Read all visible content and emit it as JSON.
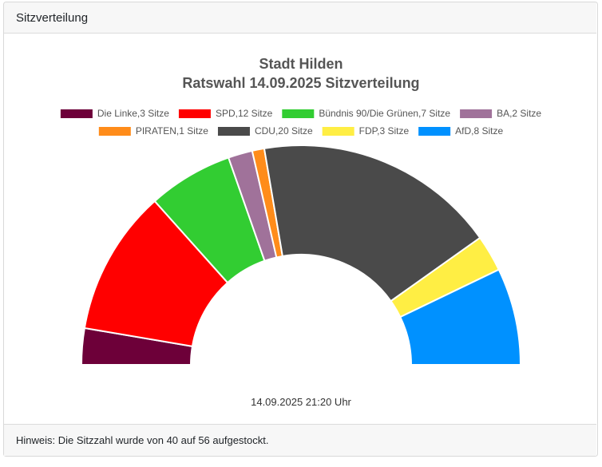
{
  "header": {
    "title": "Sitzverteilung"
  },
  "footer": {
    "note": "Hinweis: Die Sitzzahl wurde von 40 auf 56 aufgestockt."
  },
  "chart_data": {
    "type": "pie",
    "subtype": "half-doughnut",
    "title": [
      "Stadt Hilden",
      "Ratswahl 14.09.2025 Sitzverteilung"
    ],
    "legend_position": "top",
    "timestamp": "14.09.2025 21:20 Uhr",
    "series": [
      {
        "name": "Die Linke,3 Sitze",
        "value": 3,
        "color": "#6d0039"
      },
      {
        "name": "SPD,12 Sitze",
        "value": 12,
        "color": "#ff0000"
      },
      {
        "name": "Bündnis 90/Die Grünen,7 Sitze",
        "value": 7,
        "color": "#32cd32"
      },
      {
        "name": "BA,2 Sitze",
        "value": 2,
        "color": "#a0729a"
      },
      {
        "name": "PIRATEN,1 Sitze",
        "value": 1,
        "color": "#ff8c1a"
      },
      {
        "name": "CDU,20 Sitze",
        "value": 20,
        "color": "#4a4a4a"
      },
      {
        "name": "FDP,3 Sitze",
        "value": 3,
        "color": "#ffee44"
      },
      {
        "name": "AfD,8 Sitze",
        "value": 8,
        "color": "#0091ff"
      }
    ]
  }
}
